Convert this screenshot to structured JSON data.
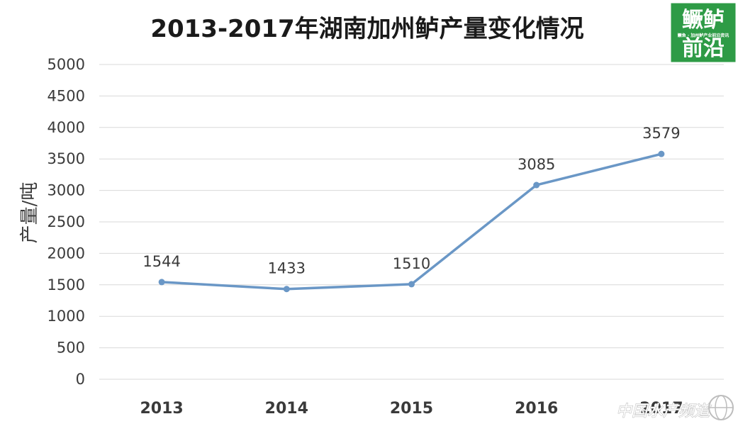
{
  "chart_data": {
    "type": "line",
    "title": "2013-2017年湖南加州鲈产量变化情况",
    "ylabel": "产量/吨",
    "xlabel": "",
    "categories": [
      "2013",
      "2014",
      "2015",
      "2016",
      "2017"
    ],
    "series": [
      {
        "values": [
          1544,
          1433,
          1510,
          3085,
          3579
        ],
        "color": "#6a97c6"
      }
    ],
    "data_labels": [
      "1544",
      "1433",
      "1510",
      "3085",
      "3579"
    ],
    "ylim": [
      0,
      5000
    ],
    "yticks": [
      0,
      500,
      1000,
      1500,
      2000,
      2500,
      3000,
      3500,
      4000,
      4500,
      5000
    ],
    "grid": true,
    "legend": "none"
  },
  "logo": {
    "line1": "鳜鲈",
    "line2": "前沿",
    "small_text": "鳜鱼 · 加州鲈产业前沿资讯",
    "color": "#2e9b46"
  },
  "watermark": {
    "text": "中国水产频道"
  }
}
